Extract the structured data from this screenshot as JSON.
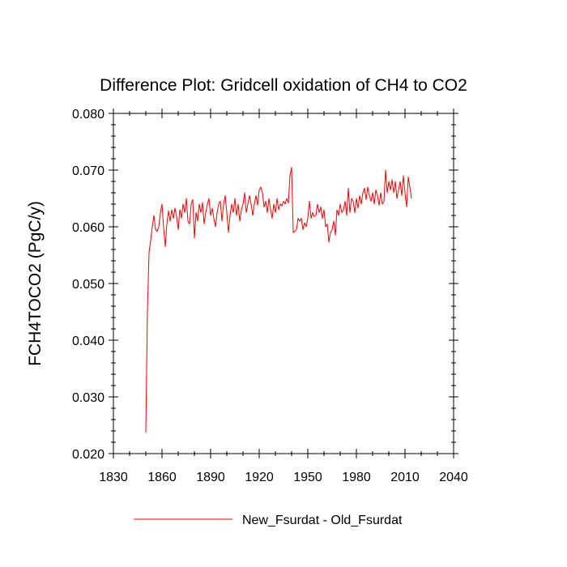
{
  "chart_data": {
    "type": "line",
    "title": "Difference Plot: Gridcell oxidation of CH4 to CO2",
    "xlabel": "",
    "ylabel": "FCH4TOCO2  (PgC/y)",
    "xlim": [
      1830,
      2040
    ],
    "ylim": [
      0.02,
      0.08
    ],
    "xticks": [
      1830,
      1860,
      1890,
      1920,
      1950,
      1980,
      2010,
      2040
    ],
    "xtick_labels": [
      "1830",
      "1860",
      "1890",
      "1920",
      "1950",
      "1980",
      "2010",
      "2040"
    ],
    "yticks": [
      0.02,
      0.03,
      0.04,
      0.05,
      0.06,
      0.07,
      0.08
    ],
    "ytick_labels": [
      "0.020",
      "0.030",
      "0.040",
      "0.050",
      "0.060",
      "0.070",
      "0.080"
    ],
    "grid": false,
    "legend_position": "bottom-center",
    "series": [
      {
        "name": "New_Fsurdat - Old_Fsurdat",
        "color": "#ff0000",
        "x_start": 1850,
        "x_step": 1,
        "values": [
          0.0237,
          0.0452,
          0.0555,
          0.0575,
          0.06,
          0.062,
          0.0595,
          0.0592,
          0.06,
          0.0625,
          0.064,
          0.0598,
          0.0565,
          0.0605,
          0.0628,
          0.061,
          0.063,
          0.0615,
          0.0633,
          0.0618,
          0.0595,
          0.063,
          0.0615,
          0.064,
          0.0625,
          0.065,
          0.061,
          0.0605,
          0.064,
          0.0648,
          0.058,
          0.0625,
          0.061,
          0.064,
          0.0625,
          0.0643,
          0.0605,
          0.0625,
          0.064,
          0.065,
          0.062,
          0.0633,
          0.0615,
          0.06,
          0.0625,
          0.064,
          0.0645,
          0.061,
          0.064,
          0.0655,
          0.0625,
          0.059,
          0.062,
          0.064,
          0.0625,
          0.065,
          0.062,
          0.064,
          0.061,
          0.063,
          0.064,
          0.066,
          0.0625,
          0.064,
          0.0655,
          0.064,
          0.062,
          0.064,
          0.0655,
          0.0638,
          0.0665,
          0.067,
          0.066,
          0.0635,
          0.0645,
          0.0625,
          0.065,
          0.063,
          0.0615,
          0.064,
          0.0625,
          0.065,
          0.063,
          0.064,
          0.0637,
          0.0645,
          0.064,
          0.065,
          0.0642,
          0.069,
          0.0705,
          0.059,
          0.0592,
          0.0595,
          0.0615,
          0.061,
          0.0615,
          0.0595,
          0.0607,
          0.06,
          0.0615,
          0.0645,
          0.0615,
          0.0625,
          0.0618,
          0.062,
          0.064,
          0.0625,
          0.0635,
          0.0615,
          0.063,
          0.06,
          0.0605,
          0.0573,
          0.059,
          0.0595,
          0.061,
          0.0585,
          0.063,
          0.062,
          0.064,
          0.0625,
          0.063,
          0.0645,
          0.062,
          0.0668,
          0.0625,
          0.065,
          0.0645,
          0.0625,
          0.065,
          0.0633,
          0.0655,
          0.064,
          0.066,
          0.0668,
          0.0648,
          0.067,
          0.0655,
          0.0645,
          0.066,
          0.064,
          0.0665,
          0.0655,
          0.0638,
          0.066,
          0.064,
          0.0645,
          0.07,
          0.066,
          0.068,
          0.0665,
          0.0683,
          0.066,
          0.068,
          0.065,
          0.0665,
          0.068,
          0.0655,
          0.069,
          0.066,
          0.0635,
          0.0688,
          0.067,
          0.065
        ]
      }
    ]
  }
}
